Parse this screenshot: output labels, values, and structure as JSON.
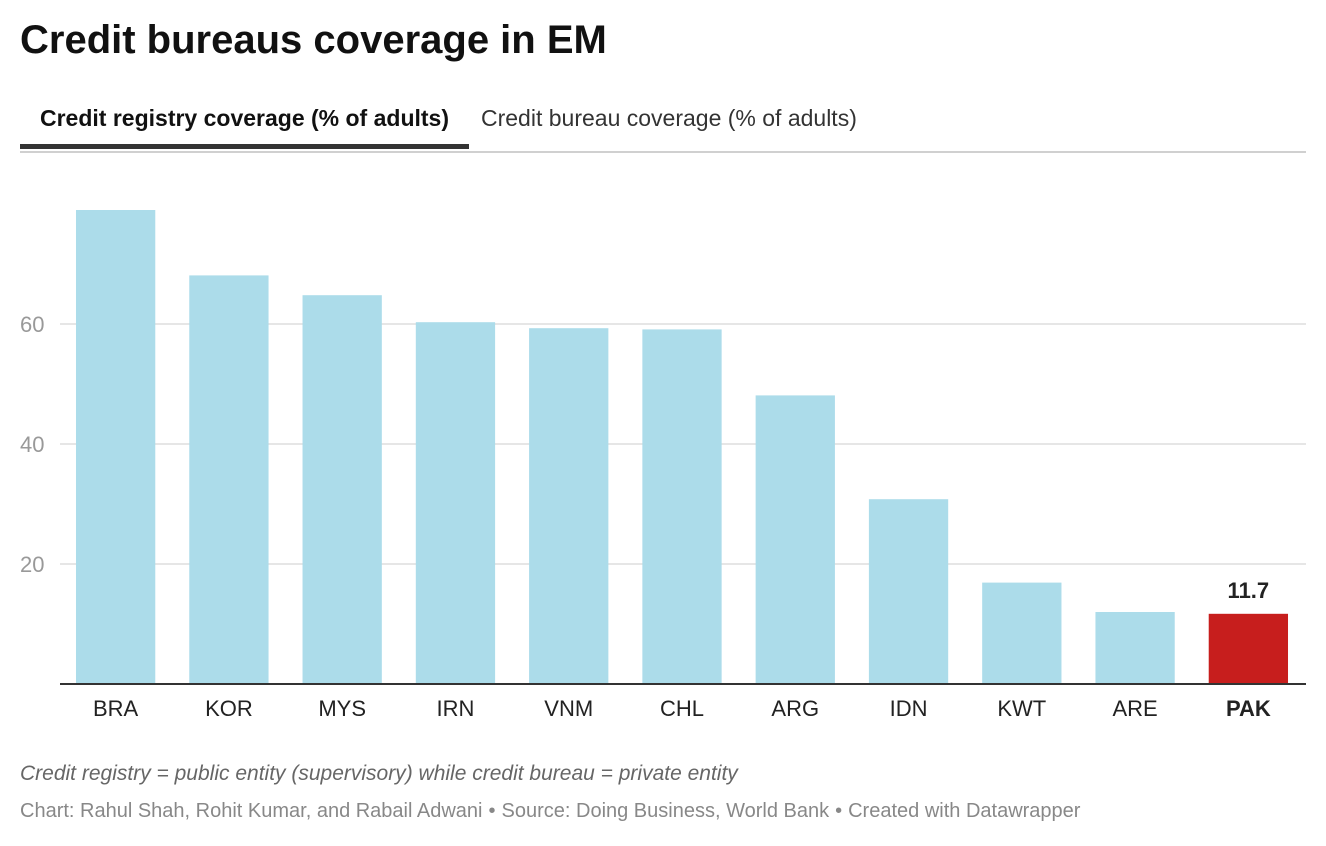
{
  "title": "Credit bureaus coverage in EM",
  "tabs": [
    {
      "label": "Credit registry coverage (% of adults)",
      "active": true
    },
    {
      "label": "Credit bureau coverage (% of adults)",
      "active": false
    }
  ],
  "chart_data": {
    "type": "bar",
    "categories": [
      "BRA",
      "KOR",
      "MYS",
      "IRN",
      "VNM",
      "CHL",
      "ARG",
      "IDN",
      "KWT",
      "ARE",
      "PAK"
    ],
    "values": [
      79.0,
      68.1,
      64.8,
      60.3,
      59.3,
      59.1,
      48.1,
      30.8,
      16.9,
      12.0,
      11.7
    ],
    "highlight": "PAK",
    "highlight_label": "11.7",
    "yticks": [
      20,
      40,
      60
    ],
    "ylim": [
      0,
      80
    ],
    "grid": true,
    "colors": {
      "bar": "#acdcea",
      "highlight": "#c71e1d",
      "grid": "#dddddd",
      "axis": "#333333",
      "tick_label": "#999999"
    }
  },
  "footnote": "Credit registry = public entity (supervisory) while credit bureau = private entity",
  "credit": {
    "chart": "Chart: Rahul Shah, Rohit Kumar, and Rabail Adwani",
    "source": "Source: Doing Business, World Bank",
    "tool": "Created with Datawrapper",
    "separator": "•"
  }
}
